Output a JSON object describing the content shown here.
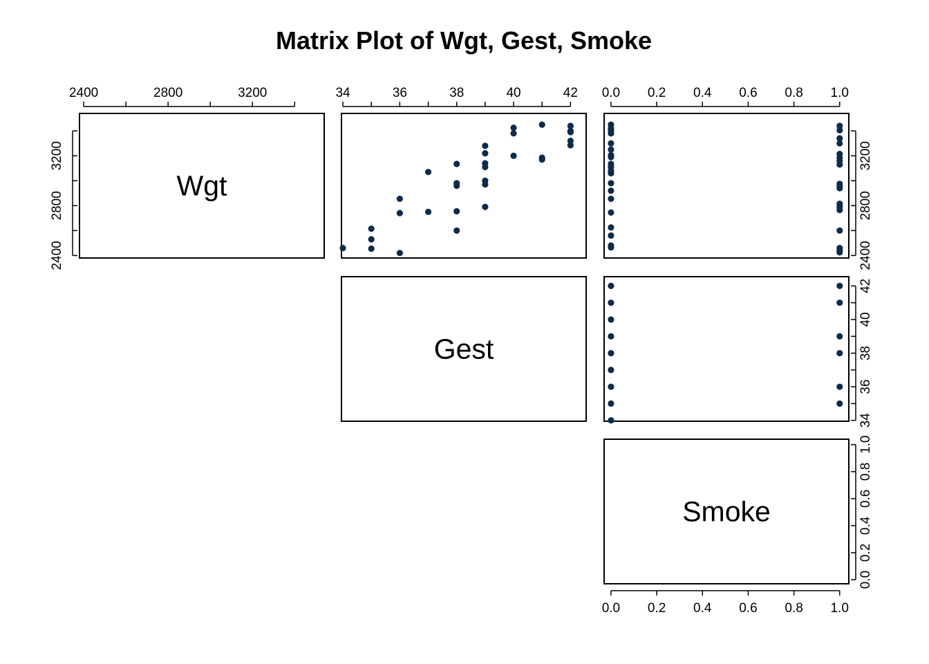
{
  "title": "Matrix Plot of Wgt, Gest, Smoke",
  "chart_data": {
    "type": "scatter-matrix",
    "title": "Matrix Plot of Wgt, Gest, Smoke",
    "variables": [
      "Wgt",
      "Gest",
      "Smoke"
    ],
    "layout": "upper",
    "marker_color": "#0f2a4a",
    "axes": {
      "Wgt": {
        "range": [
          2380,
          3540
        ],
        "ticks": [
          2400,
          2600,
          2800,
          3000,
          3200,
          3400
        ],
        "tick_labels": [
          "2400",
          "2800",
          "3200"
        ]
      },
      "Gest": {
        "range": [
          33.95,
          42.55
        ],
        "ticks": [
          34,
          35,
          36,
          37,
          38,
          39,
          40,
          41,
          42
        ],
        "tick_labels": [
          "34",
          "36",
          "38",
          "40",
          "42"
        ]
      },
      "Smoke": {
        "range": [
          -0.03,
          1.04
        ],
        "ticks": [
          0,
          0.2,
          0.4,
          0.6,
          0.8,
          1.0
        ],
        "tick_labels": [
          "0.0",
          "0.2",
          "0.4",
          "0.6",
          "0.8",
          "1.0"
        ]
      }
    },
    "panels": [
      {
        "x": "Gest",
        "y": "Wgt",
        "points": [
          [
            34,
            2460
          ],
          [
            35,
            2615
          ],
          [
            35,
            2530
          ],
          [
            35,
            2455
          ],
          [
            36,
            2855
          ],
          [
            36,
            2740
          ],
          [
            36,
            2420
          ],
          [
            37,
            3070
          ],
          [
            37,
            2750
          ],
          [
            38,
            3135
          ],
          [
            38,
            2980
          ],
          [
            38,
            2960
          ],
          [
            38,
            2755
          ],
          [
            38,
            2600
          ],
          [
            39,
            3280
          ],
          [
            39,
            3220
          ],
          [
            39,
            3140
          ],
          [
            39,
            3110
          ],
          [
            39,
            3000
          ],
          [
            39,
            2970
          ],
          [
            39,
            2790
          ],
          [
            40,
            3425
          ],
          [
            40,
            3380
          ],
          [
            40,
            3200
          ],
          [
            41,
            3450
          ],
          [
            41,
            3170
          ],
          [
            41,
            3185
          ],
          [
            42,
            3440
          ],
          [
            42,
            3400
          ],
          [
            42,
            3390
          ],
          [
            42,
            3320
          ],
          [
            42,
            3285
          ]
        ]
      },
      {
        "x": "Smoke",
        "y": "Wgt",
        "points": [
          [
            0,
            3450
          ],
          [
            0,
            3420
          ],
          [
            0,
            3400
          ],
          [
            0,
            3380
          ],
          [
            0,
            3300
          ],
          [
            0,
            3250
          ],
          [
            0,
            3205
          ],
          [
            0,
            3190
          ],
          [
            0,
            3135
          ],
          [
            0,
            3110
          ],
          [
            0,
            3080
          ],
          [
            0,
            3060
          ],
          [
            0,
            2980
          ],
          [
            0,
            2920
          ],
          [
            0,
            2855
          ],
          [
            0,
            2745
          ],
          [
            0,
            2625
          ],
          [
            0,
            2560
          ],
          [
            0,
            2480
          ],
          [
            0,
            2465
          ],
          [
            1,
            3440
          ],
          [
            1,
            3405
          ],
          [
            1,
            3340
          ],
          [
            1,
            3300
          ],
          [
            1,
            3215
          ],
          [
            1,
            3185
          ],
          [
            1,
            3160
          ],
          [
            1,
            3130
          ],
          [
            1,
            2975
          ],
          [
            1,
            2960
          ],
          [
            1,
            2940
          ],
          [
            1,
            2815
          ],
          [
            1,
            2790
          ],
          [
            1,
            2765
          ],
          [
            1,
            2600
          ],
          [
            1,
            2460
          ],
          [
            1,
            2440
          ],
          [
            1,
            2425
          ]
        ]
      },
      {
        "x": "Smoke",
        "y": "Gest",
        "points": [
          [
            0,
            42
          ],
          [
            0,
            41
          ],
          [
            0,
            40
          ],
          [
            0,
            39
          ],
          [
            0,
            38
          ],
          [
            0,
            37
          ],
          [
            0,
            36
          ],
          [
            0,
            35
          ],
          [
            0,
            34
          ],
          [
            1,
            42
          ],
          [
            1,
            41
          ],
          [
            1,
            39
          ],
          [
            1,
            38
          ],
          [
            1,
            36
          ],
          [
            1,
            35
          ]
        ]
      }
    ]
  }
}
